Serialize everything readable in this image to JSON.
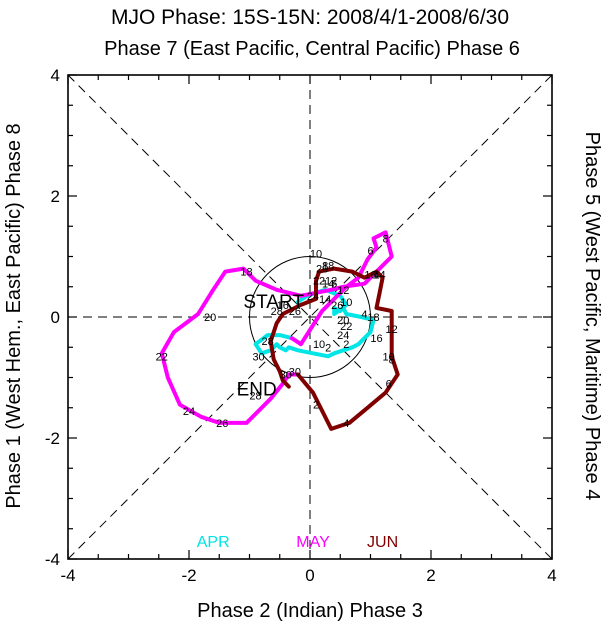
{
  "chart_data": {
    "type": "line",
    "title": "MJO Phase: 15S-15N: 2008/4/1-2008/6/30",
    "phase_labels": {
      "top": "Phase 7 (East Pacific, Central Pacific) Phase 6",
      "bottom": "Phase 2 (Indian) Phase 3",
      "left": "Phase 1 (West Hem., East Pacific) Phase 8",
      "right": "Phase 5 (West Pacific, Maritime) Phase 4"
    },
    "xlim": [
      -4,
      4
    ],
    "ylim": [
      -4,
      4
    ],
    "x_ticks": [
      "-4",
      "-2",
      "0",
      "2",
      "4"
    ],
    "y_ticks": [
      "-4",
      "-2",
      "0",
      "2",
      "4"
    ],
    "unit_circle_radius": 1,
    "start_label": "START",
    "end_label": "END",
    "series": [
      {
        "name": "APR",
        "color": "#00e5e5",
        "points": [
          [
            -0.2,
            0.25
          ],
          [
            -0.05,
            0.35
          ],
          [
            0.25,
            0.45
          ],
          [
            0.5,
            0.35
          ],
          [
            0.6,
            0.2
          ],
          [
            0.5,
            0.1
          ],
          [
            0.4,
            0.15
          ],
          [
            0.4,
            0.05
          ],
          [
            0.55,
            0.15
          ],
          [
            0.6,
            0.05
          ],
          [
            0.85,
            0.0
          ],
          [
            1.05,
            -0.05
          ],
          [
            1.0,
            -0.25
          ],
          [
            0.8,
            -0.45
          ],
          [
            0.7,
            -0.5
          ],
          [
            0.55,
            -0.55
          ],
          [
            0.4,
            -0.6
          ],
          [
            0.3,
            -0.65
          ],
          [
            0.05,
            -0.6
          ],
          [
            -0.2,
            -0.55
          ],
          [
            -0.35,
            -0.5
          ],
          [
            -0.4,
            -0.55
          ],
          [
            -0.5,
            -0.5
          ],
          [
            -0.55,
            -0.45
          ],
          [
            -0.65,
            -0.55
          ],
          [
            -0.8,
            -0.6
          ],
          [
            -0.9,
            -0.45
          ],
          [
            -0.7,
            -0.3
          ],
          [
            -0.5,
            -0.3
          ],
          [
            -0.3,
            -0.35
          ]
        ],
        "day_labels": [
          {
            "day": "10",
            "x": 0.1,
            "y": 1.05
          },
          {
            "day": "8",
            "x": 0.25,
            "y": 0.85
          },
          {
            "day": "6",
            "x": 0.4,
            "y": 0.55
          },
          {
            "day": "4",
            "x": 0.9,
            "y": 0.05
          },
          {
            "day": "2",
            "x": 0.3,
            "y": -0.5
          },
          {
            "day": "30",
            "x": -0.85,
            "y": -0.65
          },
          {
            "day": "28",
            "x": -0.7,
            "y": -0.4
          },
          {
            "day": "26",
            "x": 0.45,
            "y": 0.2
          },
          {
            "day": "24",
            "x": 0.55,
            "y": -0.3
          },
          {
            "day": "22",
            "x": 0.6,
            "y": -0.15
          },
          {
            "day": "20",
            "x": 0.55,
            "y": -0.05
          },
          {
            "day": "18",
            "x": 1.05,
            "y": 0.0
          },
          {
            "day": "16",
            "x": 1.1,
            "y": -0.35
          },
          {
            "day": "14",
            "x": 0.25,
            "y": 0.3
          },
          {
            "day": "12",
            "x": 0.35,
            "y": 0.6
          },
          {
            "day": "10",
            "x": 0.15,
            "y": -0.45
          }
        ]
      },
      {
        "name": "MAY",
        "color": "#ff00ff",
        "points": [
          [
            -0.3,
            -0.35
          ],
          [
            -0.15,
            -0.45
          ],
          [
            0.2,
            0.1
          ],
          [
            0.6,
            0.5
          ],
          [
            0.8,
            0.65
          ],
          [
            0.95,
            0.95
          ],
          [
            1.1,
            1.15
          ],
          [
            1.05,
            1.3
          ],
          [
            1.25,
            1.4
          ],
          [
            1.35,
            1.0
          ],
          [
            0.9,
            0.55
          ],
          [
            0.55,
            0.5
          ],
          [
            0.35,
            0.45
          ],
          [
            -0.15,
            0.35
          ],
          [
            -0.55,
            0.45
          ],
          [
            -0.9,
            0.6
          ],
          [
            -1.1,
            0.8
          ],
          [
            -1.4,
            0.75
          ],
          [
            -1.6,
            0.45
          ],
          [
            -1.85,
            0.05
          ],
          [
            -2.25,
            -0.25
          ],
          [
            -2.45,
            -0.6
          ],
          [
            -2.35,
            -1.0
          ],
          [
            -2.15,
            -1.45
          ],
          [
            -1.8,
            -1.65
          ],
          [
            -1.5,
            -1.75
          ],
          [
            -1.05,
            -1.75
          ],
          [
            -0.65,
            -1.35
          ],
          [
            -0.45,
            -1.1
          ],
          [
            -0.35,
            -0.95
          ],
          [
            -0.2,
            -0.95
          ]
        ],
        "day_labels": [
          {
            "day": "8",
            "x": 1.25,
            "y": 1.3
          },
          {
            "day": "6",
            "x": 1.0,
            "y": 1.1
          },
          {
            "day": "4",
            "x": 1.1,
            "y": 0.7
          },
          {
            "day": "2",
            "x": 0.6,
            "y": -0.45
          },
          {
            "day": "30",
            "x": -0.25,
            "y": -0.9
          },
          {
            "day": "28",
            "x": -0.9,
            "y": -1.3
          },
          {
            "day": "26",
            "x": -1.45,
            "y": -1.75
          },
          {
            "day": "24",
            "x": -2.0,
            "y": -1.55
          },
          {
            "day": "22",
            "x": -2.45,
            "y": -0.65
          },
          {
            "day": "20",
            "x": -1.65,
            "y": 0.0
          },
          {
            "day": "18",
            "x": -1.05,
            "y": 0.75
          },
          {
            "day": "16",
            "x": -0.45,
            "y": 0.2
          },
          {
            "day": "14",
            "x": 0.3,
            "y": 0.55
          },
          {
            "day": "12",
            "x": 0.55,
            "y": 0.45
          },
          {
            "day": "10",
            "x": 0.6,
            "y": 0.25
          }
        ]
      },
      {
        "name": "JUN",
        "color": "#800000",
        "points": [
          [
            -0.2,
            -0.95
          ],
          [
            0.05,
            -1.25
          ],
          [
            0.35,
            -1.85
          ],
          [
            0.65,
            -1.75
          ],
          [
            0.95,
            -1.5
          ],
          [
            1.25,
            -1.25
          ],
          [
            1.45,
            -0.95
          ],
          [
            1.35,
            -0.65
          ],
          [
            1.35,
            -0.35
          ],
          [
            1.35,
            -0.15
          ],
          [
            1.35,
            0.1
          ],
          [
            1.1,
            0.15
          ],
          [
            1.15,
            0.4
          ],
          [
            1.2,
            0.65
          ],
          [
            1.1,
            0.75
          ],
          [
            0.9,
            0.65
          ],
          [
            0.7,
            0.75
          ],
          [
            0.4,
            0.8
          ],
          [
            0.15,
            0.75
          ],
          [
            0.1,
            0.6
          ],
          [
            0.1,
            0.45
          ],
          [
            0.1,
            0.3
          ],
          [
            -0.15,
            0.2
          ],
          [
            -0.45,
            0.05
          ],
          [
            -0.55,
            -0.1
          ],
          [
            -0.65,
            -0.4
          ],
          [
            -0.6,
            -0.7
          ],
          [
            -0.5,
            -0.9
          ],
          [
            -0.45,
            -1.05
          ],
          [
            -0.35,
            -1.15
          ]
        ],
        "day_labels": [
          {
            "day": "2",
            "x": 0.1,
            "y": -1.45
          },
          {
            "day": "4",
            "x": 0.6,
            "y": -1.75
          },
          {
            "day": "6",
            "x": 1.3,
            "y": -1.1
          },
          {
            "day": "8",
            "x": 1.35,
            "y": -0.7
          },
          {
            "day": "10",
            "x": 1.3,
            "y": -0.65
          },
          {
            "day": "12",
            "x": 1.35,
            "y": -0.2
          },
          {
            "day": "14",
            "x": 1.15,
            "y": 0.7
          },
          {
            "day": "16",
            "x": 1.0,
            "y": 0.7
          },
          {
            "day": "18",
            "x": 0.3,
            "y": 0.85
          },
          {
            "day": "20",
            "x": 0.2,
            "y": 0.8
          },
          {
            "day": "22",
            "x": 0.15,
            "y": 0.6
          },
          {
            "day": "24",
            "x": 0.05,
            "y": 0.35
          },
          {
            "day": "26",
            "x": -0.25,
            "y": 0.1
          },
          {
            "day": "28",
            "x": -0.55,
            "y": 0.1
          },
          {
            "day": "30",
            "x": -0.4,
            "y": -0.95
          }
        ]
      }
    ],
    "legend": [
      {
        "label": "APR",
        "color": "#00e5e5"
      },
      {
        "label": "MAY",
        "color": "#ff00ff"
      },
      {
        "label": "JUN",
        "color": "#800000"
      }
    ]
  }
}
